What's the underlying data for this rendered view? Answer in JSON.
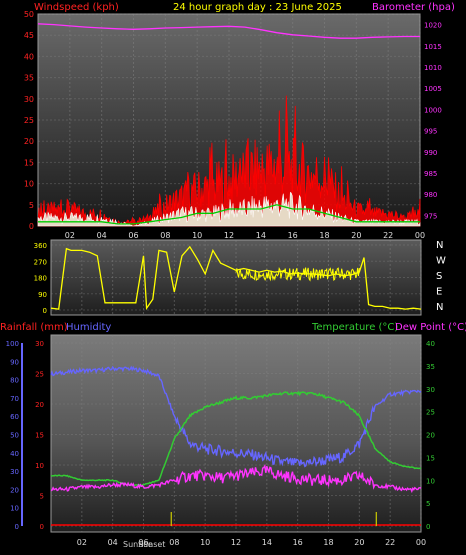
{
  "header": {
    "left_label": "Windspeed (kph)",
    "center_label": "24 hour graph day : 23 June 2025",
    "right_label": "Barometer (hpa)"
  },
  "mid_right_label": "N W S E N",
  "bottom_header": {
    "rainfall_label": "Rainfall (mm)",
    "humidity_label": "Humidity",
    "temperature_label": "Temperature (°C)",
    "dewpoint_label": "Dew Point (°C)"
  },
  "x_ticks": [
    "02",
    "04",
    "06",
    "08",
    "10",
    "12",
    "14",
    "16",
    "18",
    "20",
    "22",
    "00"
  ],
  "sunrise_label": "Sunrise",
  "sunset_label": "Sunset",
  "colors": {
    "wind": "#ff0000",
    "gust": "#ffffff",
    "wind_avg": "#00cc00",
    "barometer": "#ff33ff",
    "direction": "#ffff00",
    "humidity": "#6666ff",
    "temperature": "#33cc33",
    "dewpoint": "#ff33ff",
    "rainfall": "#ff0000",
    "sun_marker": "#cccc00",
    "header_red": "#ff2222",
    "header_yellow": "#ffff00",
    "header_magenta": "#ff33ff",
    "header_green": "#33cc33",
    "header_blue": "#6666ff"
  },
  "chart_data": [
    {
      "type": "line",
      "title": "24 hour graph day : 23 June 2025",
      "x_hours": [
        0,
        1,
        2,
        3,
        4,
        5,
        6,
        7,
        8,
        9,
        10,
        11,
        12,
        13,
        14,
        15,
        16,
        17,
        18,
        19,
        20,
        21,
        22,
        23,
        24
      ],
      "y_left_label": "Windspeed (kph)",
      "y_left_ticks": [
        0,
        5,
        10,
        15,
        20,
        25,
        30,
        35,
        40,
        45,
        50
      ],
      "y_left_range": [
        0,
        50
      ],
      "y_right_label": "Barometer (hpa)",
      "y_right_ticks": [
        975,
        980,
        985,
        990,
        995,
        1000,
        1005,
        1010,
        1015,
        1020
      ],
      "y_right_range": [
        972.5,
        1022.5
      ],
      "series": [
        {
          "name": "Wind Speed",
          "values": [
            3,
            4,
            4,
            3,
            3,
            1,
            1,
            2,
            5,
            7,
            9,
            10,
            11,
            13,
            14,
            15,
            14,
            13,
            12,
            7,
            4,
            3,
            3,
            2,
            3
          ]
        },
        {
          "name": "Wind Gust",
          "values": [
            2,
            2,
            2,
            2,
            2,
            1,
            0,
            1,
            2,
            3,
            3,
            3,
            4,
            4,
            5,
            5,
            5,
            4,
            3,
            2,
            1,
            1,
            1,
            1,
            1
          ]
        },
        {
          "name": "Wind Avg",
          "values": [
            1,
            1,
            1,
            1,
            1,
            0.5,
            0.5,
            1,
            1.5,
            2,
            3,
            3,
            4,
            4,
            4,
            5,
            4,
            4,
            3,
            2,
            1,
            1,
            1,
            1,
            1
          ]
        },
        {
          "name": "Barometer",
          "values": [
            1020.2,
            1020.0,
            1019.7,
            1019.4,
            1019.2,
            1019.0,
            1018.9,
            1019.0,
            1019.2,
            1019.3,
            1019.4,
            1019.5,
            1019.6,
            1019.4,
            1018.8,
            1018.1,
            1017.6,
            1017.3,
            1017.0,
            1016.8,
            1016.8,
            1017.0,
            1017.1,
            1017.2,
            1017.2
          ]
        }
      ]
    },
    {
      "type": "scatter",
      "title": "",
      "y_ticks": [
        0,
        90,
        180,
        270,
        360
      ],
      "y_range": [
        0,
        360
      ],
      "compass_labels": [
        "N",
        "W",
        "S",
        "E",
        "N"
      ],
      "series": [
        {
          "name": "Wind Direction",
          "x": [
            0,
            0.5,
            1,
            1.3,
            2,
            2.5,
            3,
            3.5,
            4,
            4.5,
            5,
            5.5,
            6,
            6.2,
            6.6,
            7,
            7.5,
            8,
            8.5,
            9,
            9.5,
            10,
            10.5,
            11,
            11.5,
            12,
            12.5,
            13,
            13.5,
            14,
            14.5,
            15,
            15.5,
            16,
            16.5,
            17,
            17.5,
            18,
            18.5,
            19,
            19.5,
            20,
            20.3,
            20.6,
            21,
            21.5,
            22,
            22.5,
            23,
            23.5,
            24
          ],
          "y": [
            10,
            5,
            340,
            330,
            330,
            320,
            300,
            40,
            40,
            40,
            40,
            40,
            300,
            10,
            60,
            330,
            320,
            100,
            300,
            350,
            280,
            200,
            330,
            260,
            240,
            220,
            230,
            220,
            210,
            220,
            210,
            215,
            200,
            205,
            200,
            200,
            195,
            190,
            200,
            190,
            195,
            210,
            290,
            30,
            20,
            20,
            10,
            10,
            5,
            10,
            5
          ]
        }
      ]
    },
    {
      "type": "line",
      "title": "",
      "y_rain_label": "Rainfall (mm)",
      "y_rain_ticks": [
        0,
        5,
        10,
        15,
        20,
        25,
        30
      ],
      "y_rain_range": [
        0,
        30
      ],
      "y_humidity_label": "Humidity",
      "y_humidity_ticks": [
        0,
        10,
        20,
        30,
        40,
        50,
        60,
        70,
        80,
        90,
        100
      ],
      "y_humidity_range": [
        0,
        100
      ],
      "y_temp_label": "Temperature (°C)",
      "y_temp_ticks": [
        0,
        5,
        10,
        15,
        20,
        25,
        30,
        35,
        40
      ],
      "y_temp_range": [
        0,
        40
      ],
      "x_hours": [
        0,
        1,
        2,
        3,
        4,
        5,
        6,
        7,
        8,
        9,
        10,
        11,
        12,
        13,
        14,
        15,
        16,
        17,
        18,
        19,
        20,
        21,
        22,
        23,
        24
      ],
      "series": [
        {
          "name": "Humidity",
          "values": [
            83,
            84,
            85,
            85,
            86,
            86,
            85,
            82,
            60,
            45,
            42,
            41,
            40,
            39,
            37,
            35,
            34,
            35,
            36,
            38,
            45,
            65,
            72,
            73,
            74
          ]
        },
        {
          "name": "Temperature",
          "values": [
            11,
            11,
            10,
            10,
            10,
            9,
            9,
            10,
            19,
            24,
            26,
            27,
            28,
            28,
            28.5,
            29,
            29,
            29,
            28,
            27,
            24,
            17,
            14,
            13,
            12.5
          ]
        },
        {
          "name": "Dew Point",
          "values": [
            8,
            8,
            8.5,
            8.5,
            9,
            9,
            8.5,
            9,
            10,
            11,
            11,
            10.5,
            11,
            11.5,
            12,
            11,
            10.5,
            10,
            10,
            10,
            11,
            9,
            8.5,
            8,
            8
          ]
        },
        {
          "name": "Rainfall",
          "values": [
            0,
            0,
            0,
            0,
            0,
            0,
            0,
            0,
            0,
            0,
            0,
            0,
            0,
            0,
            0,
            0,
            0,
            0,
            0,
            0,
            0,
            0,
            0,
            0,
            0
          ]
        }
      ]
    }
  ]
}
